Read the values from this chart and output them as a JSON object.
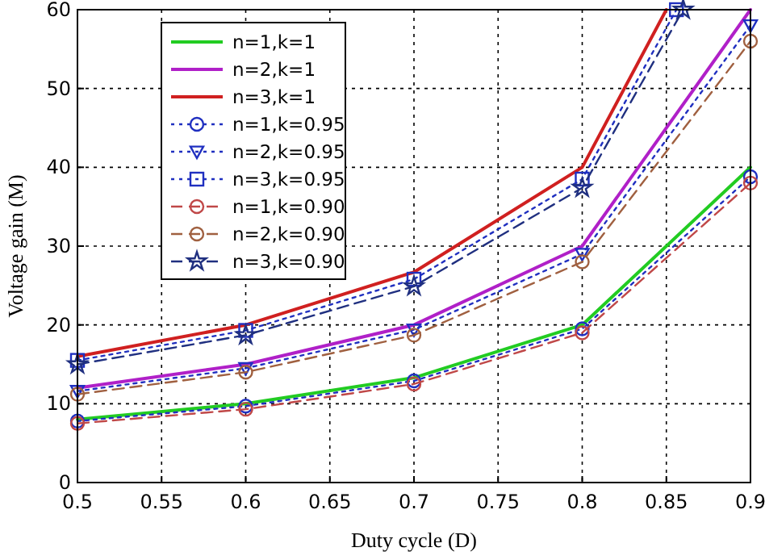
{
  "chart_data": {
    "type": "line",
    "xlabel": "Duty cycle (D)",
    "ylabel": "Voltage gain (M)",
    "xlim": [
      0.5,
      0.9
    ],
    "ylim": [
      0,
      60
    ],
    "xticks": [
      0.5,
      0.55,
      0.6,
      0.65,
      0.7,
      0.75,
      0.8,
      0.85,
      0.9
    ],
    "yticks": [
      0,
      10,
      20,
      30,
      40,
      50,
      60
    ],
    "grid": true,
    "legend": "top left",
    "x": [
      0.5,
      0.6,
      0.7,
      0.8,
      0.9
    ],
    "series": [
      {
        "name": "n=1,k=1",
        "color": "#22cc22",
        "values": [
          8,
          10,
          13.3,
          20,
          40
        ],
        "marker": "none",
        "line_style": "solid"
      },
      {
        "name": "n=2,k=1",
        "color": "#b020c8",
        "values": [
          12,
          15,
          20,
          30,
          60
        ],
        "marker": "none",
        "line_style": "solid"
      },
      {
        "name": "n=3,k=1",
        "color": "#d02020",
        "x": [
          0.5,
          0.6,
          0.7,
          0.8,
          0.85
        ],
        "values": [
          16,
          20,
          26.7,
          40,
          60
        ],
        "marker": "none",
        "line_style": "solid"
      },
      {
        "name": "n=1,k=0.95",
        "color": "#2030c0",
        "values": [
          7.8,
          9.7,
          12.9,
          19.5,
          38.8
        ],
        "marker": "circle",
        "line_style": "dotted"
      },
      {
        "name": "n=2,k=0.95",
        "color": "#2030c0",
        "values": [
          11.6,
          14.5,
          19.4,
          29,
          58
        ],
        "marker": "triangle",
        "line_style": "dotted"
      },
      {
        "name": "n=3,k=0.95",
        "color": "#2030c0",
        "x": [
          0.5,
          0.6,
          0.7,
          0.8,
          0.856
        ],
        "values": [
          15.5,
          19.3,
          25.8,
          38.5,
          60
        ],
        "marker": "square",
        "line_style": "dotted"
      },
      {
        "name": "n=1,k=0.90",
        "color": "#c04848",
        "values": [
          7.5,
          9.3,
          12.5,
          19,
          38
        ],
        "marker": "circle",
        "line_style": "dashed"
      },
      {
        "name": "n=2,k=0.90",
        "color": "#a06040",
        "values": [
          11.2,
          14,
          18.7,
          28,
          56
        ],
        "marker": "circle",
        "line_style": "dashed"
      },
      {
        "name": "n=3,k=0.90",
        "color": "#203080",
        "x": [
          0.5,
          0.6,
          0.7,
          0.8,
          0.86
        ],
        "values": [
          15,
          18.7,
          24.9,
          37.4,
          60
        ],
        "marker": "star",
        "line_style": "dashed"
      }
    ]
  }
}
